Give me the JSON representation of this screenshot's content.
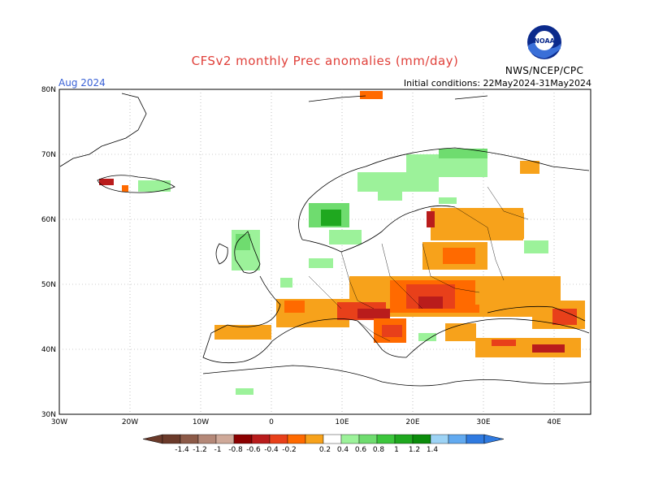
{
  "title": "CFSv2 monthly Prec anomalies (mm/day)",
  "period": "Aug 2024",
  "initial_conditions": "Initial conditions: 22May2024-31May2024",
  "agency": "NWS/NCEP/CPC",
  "logo_text": "NOAA",
  "axes": {
    "lon_ticks": [
      "30W",
      "20W",
      "10W",
      "0",
      "10E",
      "20E",
      "30E",
      "40E"
    ],
    "lat_ticks": [
      "80N",
      "70N",
      "60N",
      "50N",
      "40N",
      "30N"
    ]
  },
  "colorbar": {
    "labels": [
      "-1.4",
      "-1.2",
      "-1",
      "-0.8",
      "-0.6",
      "-0.4",
      "-0.2",
      "0.2",
      "0.4",
      "0.6",
      "0.8",
      "1",
      "1.2",
      "1.4"
    ],
    "colors": [
      "#6b3a2a",
      "#8c5a48",
      "#b48878",
      "#cfa999",
      "#8b0000",
      "#b91c1c",
      "#e8401a",
      "#ff6a00",
      "#f7a21b",
      "#ffffff",
      "#9cf29a",
      "#6fdc6f",
      "#3cc63c",
      "#1fa81f",
      "#0b8c0b",
      "#9dd3f5",
      "#62aaf0",
      "#2f7ae0"
    ],
    "min_label": "-1.4",
    "max_label": "1.4"
  },
  "legend_colors": {
    "wet_light": "#9cf29a",
    "wet_mid": "#6fdc6f",
    "wet_strong": "#1fa81f",
    "dry_light": "#f7a21b",
    "dry_mid": "#ff6a00",
    "dry_strong": "#e8401a",
    "dry_extreme": "#b91c1c"
  }
}
